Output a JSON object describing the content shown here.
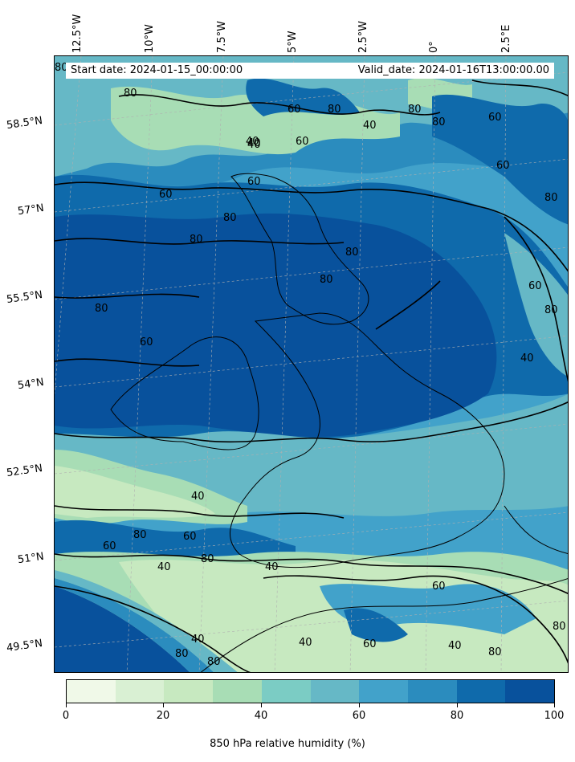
{
  "header": {
    "start_date": "Start date: 2024-01-15_00:00:00",
    "valid_date": "Valid_date: 2024-01-16T13:00:00.00"
  },
  "lon_labels": [
    "12.5°W",
    "10°W",
    "7.5°W",
    "5°W",
    "2.5°W",
    "0°",
    "2.5°E"
  ],
  "lat_labels": [
    "58.5°N",
    "57°N",
    "55.5°N",
    "54°N",
    "52.5°N",
    "51°N",
    "49.5°N"
  ],
  "contour_labels": [
    "80",
    "80",
    "60",
    "80",
    "40",
    "60",
    "40",
    "80",
    "60",
    "80",
    "40",
    "60",
    "80",
    "80",
    "80",
    "80",
    "80",
    "60",
    "40",
    "60",
    "80",
    "60",
    "80",
    "40",
    "60",
    "40",
    "60",
    "80",
    "40",
    "80",
    "40",
    "60",
    "40",
    "40",
    "60",
    "40",
    "60",
    "80",
    "80",
    "80",
    "80"
  ],
  "colorbar": {
    "label": "850 hPa relative humidity (%)",
    "ticks": [
      "0",
      "20",
      "40",
      "60",
      "80",
      "100"
    ],
    "colors": [
      "#f0f9e8",
      "#d9f0d3",
      "#c7e9c0",
      "#a8ddb5",
      "#7bccc4",
      "#66b8c6",
      "#42a2ca",
      "#2b8cbe",
      "#0f6aab",
      "#08519c"
    ]
  },
  "palette": {
    "frame": "#000000",
    "coast": "#000000",
    "contour": "#000000",
    "grid": "#b0b0b0"
  }
}
